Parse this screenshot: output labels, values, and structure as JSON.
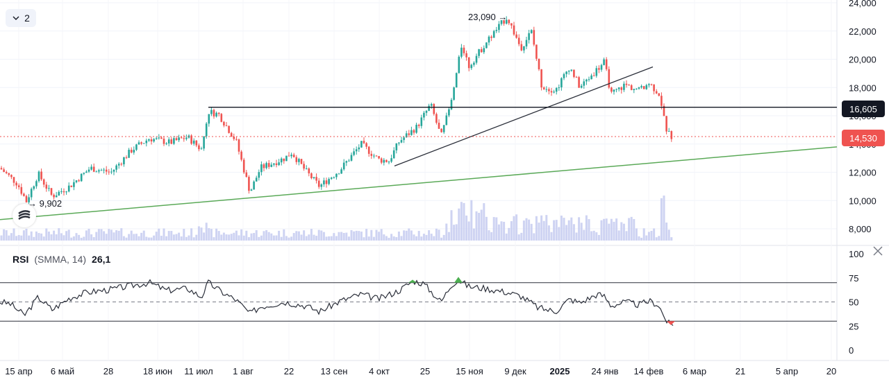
{
  "pane_toggle": {
    "label": "2",
    "icon": "chevron-down-icon"
  },
  "rsi": {
    "name": "RSI",
    "params": "(SMMA, 14)",
    "value": "26,1",
    "close_icon": "close-icon"
  },
  "logo_icon": "exchange-logo-icon",
  "colors": {
    "up": "#26a69a",
    "down": "#ef5350",
    "volume": "#c5cbf0",
    "support_line": "#5aa957",
    "price_line": "#ef5350",
    "level_line": "#131722",
    "rsi_line": "#2a2e39",
    "rsi_over": "#4caf50",
    "rsi_under": "#ef5350",
    "level_tag_bg": "#131722",
    "price_tag_bg": "#ef5350"
  },
  "chart_data": {
    "type": "candlestick",
    "price_axis": {
      "ticks": [
        "24,000",
        "22,000",
        "20,000",
        "18,000",
        "16,000",
        "14,000",
        "12,000",
        "10,000",
        "8,000"
      ],
      "range": [
        7200,
        24400
      ]
    },
    "time_axis": {
      "ticks": [
        "15 апр",
        "6 май",
        "28",
        "18 июн",
        "11 июл",
        "1 авг",
        "22",
        "13 сен",
        "4 окт",
        "25",
        "15 ноя",
        "9 дек",
        "2025",
        "24 янв",
        "14 фев",
        "6 мар",
        "21",
        "5 апр",
        "20"
      ]
    },
    "annotations": {
      "high_label": "23,090",
      "low_label": "9,902"
    },
    "levels": {
      "horizontal_level": "16,605",
      "last_price": "14,530"
    },
    "rsi_axis": {
      "ticks": [
        "100",
        "75",
        "50",
        "25",
        "0"
      ],
      "bands": [
        70,
        50,
        30
      ],
      "range": [
        0,
        100
      ]
    },
    "series_summary": {
      "open_first": 12300,
      "high": 23090,
      "low": 9902,
      "last": 14530,
      "rsi_last": 26.1
    }
  }
}
